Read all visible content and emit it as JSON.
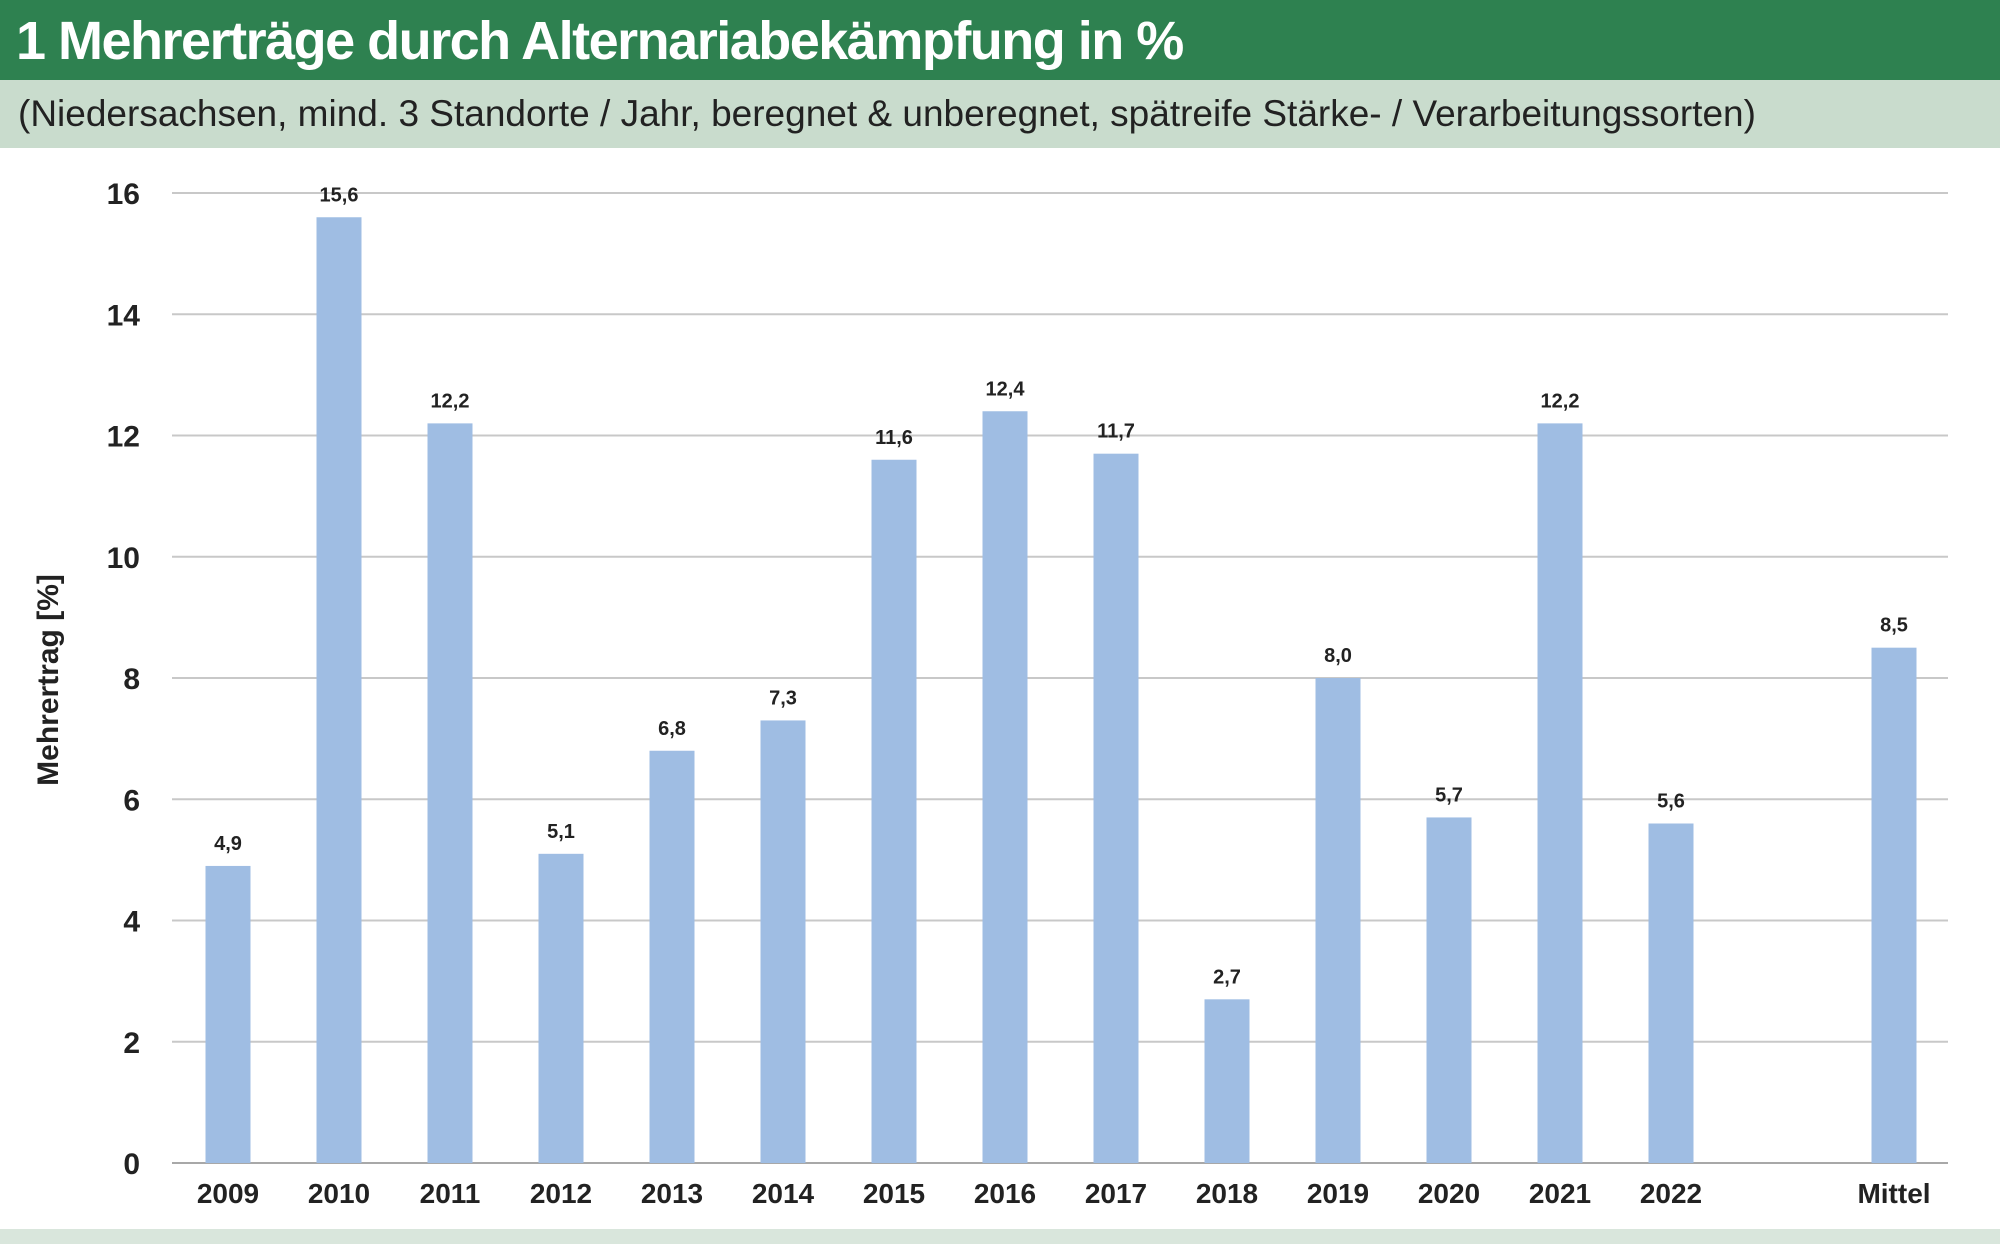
{
  "header": {
    "title": "1 Mehrerträge durch Alternariabekämpfung in %",
    "subtitle": "(Niedersachsen, mind. 3 Standorte / Jahr, beregnet & unberegnet, spätreife Stärke- / Verarbeitungssorten)"
  },
  "colors": {
    "title_bg": "#2e8150",
    "subtitle_bg": "#c9dccd",
    "bar": "#9fbde3",
    "grid": "#c8c8c8"
  },
  "chart_data": {
    "type": "bar",
    "categories": [
      "2009",
      "2010",
      "2011",
      "2012",
      "2013",
      "2014",
      "2015",
      "2016",
      "2017",
      "2018",
      "2019",
      "2020",
      "2021",
      "2022",
      "Mittel"
    ],
    "values": [
      4.9,
      15.6,
      12.2,
      5.1,
      6.8,
      7.3,
      11.6,
      12.4,
      11.7,
      2.7,
      8.0,
      5.7,
      12.2,
      5.6,
      8.5
    ],
    "data_labels": [
      "4,9",
      "15,6",
      "12,2",
      "5,1",
      "6,8",
      "7,3",
      "11,6",
      "12,4",
      "11,7",
      "2,7",
      "8,0",
      "5,7",
      "12,2",
      "5,6",
      "8,5"
    ],
    "ylabel": "Mehrertrag [%]",
    "xlabel": "",
    "ylim": [
      0,
      16
    ],
    "yticks": [
      "0",
      "2",
      "4",
      "6",
      "8",
      "10",
      "12",
      "14",
      "16"
    ],
    "grid": true,
    "legend": "none"
  }
}
